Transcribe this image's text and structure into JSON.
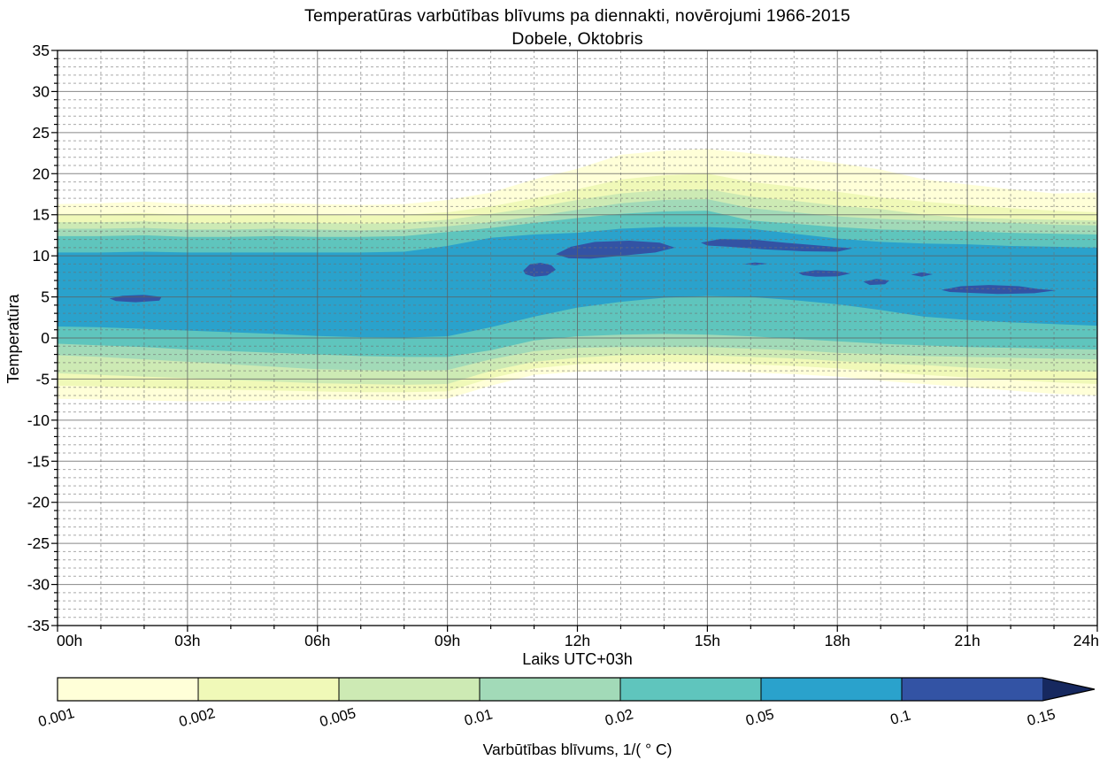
{
  "title": {
    "line1": "Temperatūras varbūtības blīvums pa diennakti, novērojumi 1966-2015",
    "line2": "Dobele, Oktobris"
  },
  "x_axis": {
    "label": "Laiks UTC+03h",
    "tick_labels": [
      "00h",
      "03h",
      "06h",
      "09h",
      "12h",
      "15h",
      "18h",
      "21h",
      "24h"
    ],
    "range_hours": [
      0,
      24
    ],
    "major_step_hours": 3,
    "minor_step_hours": 1
  },
  "y_axis": {
    "label": "Temperatūra",
    "tick_labels": [
      "35",
      "30",
      "25",
      "20",
      "15",
      "10",
      "5",
      "0",
      "-5",
      "-10",
      "-15",
      "-20",
      "-25",
      "-30",
      "-35"
    ],
    "tick_values": [
      35,
      30,
      25,
      20,
      15,
      10,
      5,
      0,
      -5,
      -10,
      -15,
      -20,
      -25,
      -30,
      -35
    ],
    "range": [
      -35,
      35
    ],
    "major_step": 5,
    "minor_step": 1
  },
  "colorbar": {
    "label": "Varbūtības blīvums, 1/( ° C)",
    "tick_labels": [
      "0.001",
      "0.002",
      "0.005",
      "0.01",
      "0.02",
      "0.05",
      "0.1",
      "0.15"
    ],
    "segment_colors": [
      "#ffffd8",
      "#f0f9b8",
      "#cdeab4",
      "#a2dab8",
      "#5fc5bd",
      "#2aa2cc",
      "#3353a4"
    ],
    "overflow_arrow_color": "#16285f",
    "tick_label_rotation_deg": -15
  },
  "chart_data": {
    "type": "filled-contour",
    "title": "Temperatūras varbūtības blīvums pa diennakti, novērojumi 1966-2015 — Dobele, Oktobris",
    "xlabel": "Laiks UTC+03h",
    "ylabel": "Temperatūra",
    "x_range_hours": [
      0,
      24
    ],
    "y_range_degC": [
      -35,
      35
    ],
    "grid": {
      "major_color": "#5f5f5f",
      "minor_color": "#6f6f6f",
      "minor_dash": "3 3",
      "major_opacity": 0.75,
      "minor_opacity": 0.6
    },
    "background": "#ffffff",
    "x_hours": [
      0,
      1,
      2,
      3,
      4,
      5,
      6,
      7,
      8,
      9,
      10,
      11,
      12,
      13,
      14,
      15,
      16,
      17,
      18,
      19,
      20,
      21,
      22,
      23,
      24
    ],
    "levels": [
      0.001,
      0.002,
      0.005,
      0.01,
      0.02,
      0.05
    ],
    "bands": [
      {
        "level": 0.001,
        "color": "#ffffd8",
        "upper": [
          16.3,
          16.4,
          16.6,
          16.3,
          16.2,
          16.4,
          16.3,
          16.2,
          16.3,
          16.8,
          17.7,
          19.3,
          20.6,
          22.3,
          22.8,
          23.0,
          22.5,
          21.9,
          21.3,
          20.5,
          19.3,
          18.7,
          18.1,
          17.6,
          17.7
        ],
        "lower": [
          -7.4,
          -7.5,
          -7.6,
          -7.7,
          -7.7,
          -7.6,
          -7.5,
          -7.5,
          -7.6,
          -7.4,
          -5.8,
          -4.5,
          -4.1,
          -4.0,
          -3.9,
          -4.0,
          -4.2,
          -4.4,
          -4.7,
          -5.2,
          -5.6,
          -6.0,
          -6.4,
          -6.8,
          -7.0
        ]
      },
      {
        "level": 0.002,
        "color": "#f0f9b8",
        "upper": [
          15.1,
          15.1,
          15.2,
          15.0,
          15.0,
          15.1,
          15.0,
          14.9,
          15.0,
          15.3,
          16.0,
          17.0,
          18.1,
          19.3,
          19.8,
          20.0,
          19.0,
          18.4,
          17.8,
          17.1,
          16.6,
          16.2,
          15.8,
          15.5,
          15.3
        ],
        "lower": [
          -5.8,
          -5.9,
          -6.1,
          -6.2,
          -6.3,
          -6.4,
          -6.5,
          -6.6,
          -6.6,
          -6.5,
          -4.9,
          -3.7,
          -3.2,
          -3.0,
          -2.9,
          -3.0,
          -3.2,
          -3.4,
          -3.7,
          -4.1,
          -4.5,
          -4.8,
          -5.1,
          -5.4,
          -5.6
        ]
      },
      {
        "level": 0.005,
        "color": "#cdeab4",
        "upper": [
          14.1,
          14.1,
          14.2,
          14.0,
          14.0,
          14.1,
          14.0,
          13.9,
          14.0,
          14.4,
          15.1,
          15.9,
          16.8,
          17.6,
          18.0,
          18.1,
          17.2,
          16.7,
          16.1,
          15.7,
          15.0,
          14.6,
          14.5,
          14.4,
          14.3
        ],
        "lower": [
          -4.3,
          -4.5,
          -4.7,
          -4.9,
          -5.1,
          -5.3,
          -5.5,
          -5.6,
          -5.7,
          -5.6,
          -4.0,
          -2.9,
          -2.4,
          -2.1,
          -2.0,
          -2.1,
          -2.3,
          -2.5,
          -2.8,
          -3.1,
          -3.3,
          -3.6,
          -3.8,
          -4.0,
          -4.1
        ]
      },
      {
        "level": 0.01,
        "color": "#a2dab8",
        "upper": [
          13.3,
          13.3,
          13.4,
          13.2,
          13.2,
          13.3,
          13.2,
          13.1,
          13.2,
          13.6,
          14.1,
          14.8,
          15.6,
          16.4,
          16.8,
          16.9,
          15.8,
          15.3,
          14.8,
          14.5,
          14.3,
          14.2,
          14.0,
          13.8,
          13.7
        ],
        "lower": [
          -2.1,
          -2.3,
          -2.6,
          -2.9,
          -3.2,
          -3.5,
          -3.8,
          -3.9,
          -4.0,
          -3.9,
          -2.6,
          -1.6,
          -1.2,
          -1.1,
          -1.1,
          -1.1,
          -1.3,
          -1.5,
          -1.8,
          -2.0,
          -2.2,
          -2.3,
          -2.4,
          -2.5,
          -2.6
        ]
      },
      {
        "level": 0.02,
        "color": "#5fc5bd",
        "upper": [
          12.4,
          12.4,
          12.5,
          12.3,
          12.3,
          12.4,
          12.3,
          12.3,
          12.4,
          12.9,
          13.4,
          14.0,
          14.6,
          15.1,
          15.4,
          15.5,
          14.3,
          13.9,
          13.5,
          13.2,
          13.1,
          13.0,
          12.8,
          12.7,
          12.6
        ],
        "lower": [
          -0.7,
          -0.9,
          -1.1,
          -1.4,
          -1.6,
          -1.8,
          -2.0,
          -2.2,
          -2.3,
          -2.3,
          -1.5,
          -0.3,
          0.2,
          0.4,
          0.5,
          0.4,
          0.2,
          -0.1,
          -0.4,
          -0.7,
          -0.9,
          -1.1,
          -1.2,
          -1.3,
          -1.4
        ]
      },
      {
        "level": 0.05,
        "color": "#2aa2cc",
        "upper": [
          10.4,
          10.4,
          10.5,
          10.4,
          10.4,
          10.4,
          10.4,
          10.4,
          10.5,
          11.2,
          12.2,
          12.6,
          12.8,
          13.3,
          13.5,
          13.5,
          13.3,
          12.7,
          12.1,
          11.7,
          11.5,
          11.4,
          11.2,
          11.1,
          11.0
        ],
        "lower": [
          1.4,
          1.3,
          1.1,
          0.9,
          0.7,
          0.5,
          0.25,
          0.1,
          0.05,
          0.2,
          1.3,
          2.6,
          3.7,
          4.4,
          4.9,
          5.1,
          5.0,
          4.6,
          4.1,
          3.4,
          2.6,
          2.2,
          1.9,
          1.7,
          1.5
        ]
      }
    ],
    "extra_blobs": {
      "level": 0.1,
      "color": "#3353a4",
      "polygons_hour_temp": [
        [
          [
            1.2,
            4.8
          ],
          [
            1.5,
            5.15
          ],
          [
            2.0,
            5.25
          ],
          [
            2.4,
            5.0
          ],
          [
            2.35,
            4.55
          ],
          [
            1.8,
            4.35
          ],
          [
            1.35,
            4.5
          ]
        ],
        [
          [
            10.75,
            8.2
          ],
          [
            10.9,
            8.95
          ],
          [
            11.15,
            9.15
          ],
          [
            11.4,
            8.85
          ],
          [
            11.5,
            8.3
          ],
          [
            11.3,
            7.6
          ],
          [
            11.0,
            7.45
          ],
          [
            10.8,
            7.75
          ]
        ],
        [
          [
            11.5,
            10.2
          ],
          [
            11.85,
            11.1
          ],
          [
            12.4,
            11.7
          ],
          [
            13.2,
            11.85
          ],
          [
            13.9,
            11.6
          ],
          [
            14.25,
            11.0
          ],
          [
            13.8,
            10.4
          ],
          [
            13.0,
            10.0
          ],
          [
            12.3,
            9.65
          ],
          [
            11.8,
            9.7
          ]
        ],
        [
          [
            14.85,
            11.6
          ],
          [
            15.3,
            12.05
          ],
          [
            16.1,
            11.95
          ],
          [
            16.9,
            11.55
          ],
          [
            17.7,
            11.2
          ],
          [
            18.35,
            10.9
          ],
          [
            18.0,
            10.5
          ],
          [
            17.2,
            10.55
          ],
          [
            16.3,
            10.8
          ],
          [
            15.5,
            11.1
          ],
          [
            15.0,
            11.25
          ]
        ],
        [
          [
            15.85,
            9.0
          ],
          [
            16.1,
            9.2
          ],
          [
            16.4,
            9.05
          ],
          [
            16.1,
            8.85
          ]
        ],
        [
          [
            17.1,
            7.95
          ],
          [
            17.5,
            8.25
          ],
          [
            18.0,
            8.15
          ],
          [
            18.3,
            7.85
          ],
          [
            18.0,
            7.5
          ],
          [
            17.5,
            7.45
          ],
          [
            17.2,
            7.65
          ]
        ],
        [
          [
            18.6,
            6.85
          ],
          [
            18.9,
            7.2
          ],
          [
            19.2,
            7.0
          ],
          [
            19.1,
            6.55
          ],
          [
            18.75,
            6.45
          ]
        ],
        [
          [
            19.7,
            7.7
          ],
          [
            19.95,
            8.0
          ],
          [
            20.2,
            7.75
          ],
          [
            19.95,
            7.45
          ]
        ],
        [
          [
            20.4,
            5.85
          ],
          [
            20.85,
            6.3
          ],
          [
            21.5,
            6.45
          ],
          [
            22.2,
            6.3
          ],
          [
            22.65,
            5.95
          ],
          [
            23.05,
            5.8
          ],
          [
            22.55,
            5.45
          ],
          [
            21.7,
            5.35
          ],
          [
            21.0,
            5.5
          ],
          [
            20.6,
            5.6
          ]
        ]
      ]
    },
    "colorbar_levels": [
      0.001,
      0.002,
      0.005,
      0.01,
      0.02,
      0.05,
      0.1,
      0.15
    ]
  }
}
